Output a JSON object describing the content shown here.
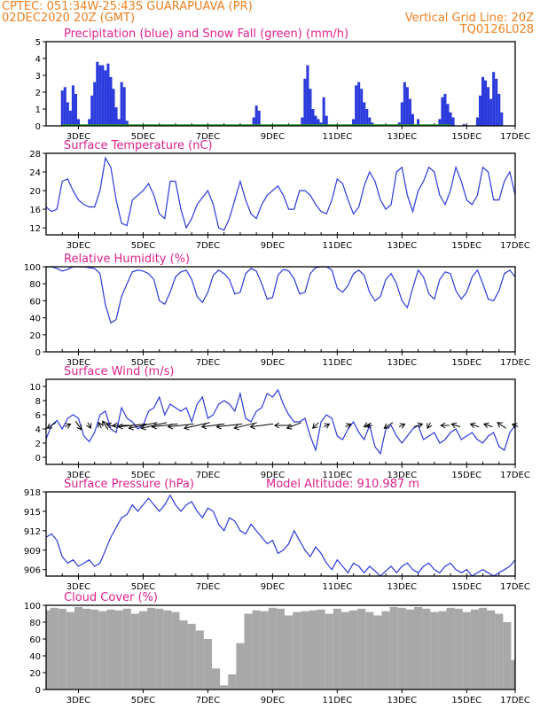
{
  "header": {
    "line1_left": "CPTEC:  051:34W-25:43S  GUARAPUAVA (PR)",
    "line2_left": "02DEC2020 20Z (GMT)",
    "line2_right": "Vertical Grid Line: 20Z",
    "line3_right": "TQ0126L028"
  },
  "colors": {
    "header": "#f08020",
    "panel_title": "#e0208c",
    "series": "#2a3adc",
    "snow": "#20a020",
    "cloud": "#a8a8a8",
    "wind_arrow": "#000000"
  },
  "chart_data": [
    {
      "id": "precip",
      "type": "bar",
      "title": "Precipitation (blue) and Snow Fall (green) (mm/h)",
      "ylim": [
        0,
        5
      ],
      "yticks": [
        0,
        1,
        2,
        3,
        4,
        5
      ],
      "xticks": [
        "3DEC",
        "5DEC",
        "7DEC",
        "9DEC",
        "11DEC",
        "13DEC",
        "15DEC",
        "17DEC"
      ],
      "xlim_hours": [
        0,
        348
      ],
      "x_hours": [
        12,
        14,
        16,
        18,
        20,
        22,
        24,
        32,
        34,
        36,
        38,
        40,
        42,
        44,
        46,
        48,
        50,
        52,
        54,
        56,
        58,
        60,
        154,
        156,
        158,
        190,
        192,
        194,
        196,
        198,
        200,
        202,
        204,
        206,
        208,
        228,
        230,
        232,
        234,
        236,
        238,
        240,
        242,
        262,
        264,
        266,
        268,
        270,
        272,
        276,
        292,
        294,
        296,
        298,
        300,
        302,
        310,
        320,
        322,
        324,
        326,
        328,
        330,
        332,
        334,
        336,
        338
      ],
      "values": [
        2.1,
        2.3,
        1.4,
        0.9,
        2.4,
        1.9,
        0.4,
        0.4,
        1.8,
        2.6,
        3.8,
        3.6,
        3.6,
        3.3,
        3.7,
        2.9,
        2.2,
        1.1,
        0.4,
        2.6,
        2.3,
        0.3,
        0.5,
        1.2,
        0.9,
        0.5,
        2.8,
        3.6,
        2.2,
        1.0,
        0.6,
        0.4,
        0.2,
        1.7,
        0.6,
        0.4,
        2.4,
        2.6,
        2.2,
        1.4,
        1.0,
        0.5,
        0.2,
        0.2,
        1.4,
        2.6,
        2.3,
        1.6,
        0.7,
        0.4,
        0.4,
        1.7,
        1.9,
        1.3,
        0.8,
        0.5,
        0.1,
        0.5,
        1.8,
        2.9,
        2.7,
        2.3,
        1.6,
        3.2,
        2.8,
        1.9,
        0.8
      ],
      "snow": "0 throughout"
    },
    {
      "id": "temp",
      "type": "line",
      "title": "Surface Temperature (nC)",
      "ylim": [
        10.5,
        28
      ],
      "yticks": [
        12,
        16,
        20,
        24,
        28
      ],
      "xticks": [
        "3DEC",
        "5DEC",
        "7DEC",
        "9DEC",
        "11DEC",
        "13DEC",
        "15DEC",
        "17DEC"
      ],
      "x_hours": [
        0,
        4,
        8,
        12,
        16,
        20,
        24,
        28,
        32,
        36,
        40,
        44,
        48,
        52,
        56,
        60,
        64,
        68,
        72,
        76,
        80,
        84,
        88,
        92,
        96,
        100,
        104,
        108,
        112,
        116,
        120,
        124,
        128,
        132,
        136,
        140,
        144,
        148,
        152,
        156,
        160,
        164,
        168,
        172,
        176,
        180,
        184,
        188,
        192,
        196,
        200,
        204,
        208,
        212,
        216,
        220,
        224,
        228,
        232,
        236,
        240,
        244,
        248,
        252,
        256,
        260,
        264,
        268,
        272,
        276,
        280,
        284,
        288,
        292,
        296,
        300,
        304,
        308,
        312,
        316,
        320,
        324,
        328,
        332,
        336,
        340,
        344,
        348
      ],
      "values": [
        16.5,
        15.5,
        16,
        22,
        22.5,
        20,
        18,
        17,
        16.5,
        16.5,
        20,
        27,
        25,
        18,
        13,
        12.5,
        18,
        19,
        20,
        21.5,
        19,
        15,
        14,
        22,
        22,
        16,
        12,
        14,
        17,
        18.5,
        20,
        17,
        12,
        11.5,
        14,
        18,
        22,
        18,
        15,
        14,
        17,
        19,
        20,
        21,
        19,
        16,
        16,
        20,
        20,
        19,
        17,
        15.5,
        15,
        18,
        22.5,
        21.5,
        18,
        15,
        16.5,
        21,
        24,
        22,
        18,
        16,
        17,
        24,
        25,
        19,
        15.5,
        20,
        22,
        25,
        24,
        19,
        17,
        20,
        25,
        22,
        18,
        17,
        19,
        25,
        24,
        18,
        18,
        22,
        24,
        19
      ]
    },
    {
      "id": "rh",
      "type": "line",
      "title": "Relative Humidity (%)",
      "ylim": [
        0,
        100
      ],
      "yticks": [
        0,
        20,
        40,
        60,
        80,
        100
      ],
      "xticks": [
        "3DEC",
        "5DEC",
        "7DEC",
        "9DEC",
        "11DEC",
        "13DEC",
        "15DEC",
        "17DEC"
      ],
      "x_hours": [
        0,
        4,
        8,
        12,
        16,
        20,
        24,
        28,
        32,
        36,
        40,
        44,
        48,
        52,
        56,
        60,
        64,
        68,
        72,
        76,
        80,
        84,
        88,
        92,
        96,
        100,
        104,
        108,
        112,
        116,
        120,
        124,
        128,
        132,
        136,
        140,
        144,
        148,
        152,
        156,
        160,
        164,
        168,
        172,
        176,
        180,
        184,
        188,
        192,
        196,
        200,
        204,
        208,
        212,
        216,
        220,
        224,
        228,
        232,
        236,
        240,
        244,
        248,
        252,
        256,
        260,
        264,
        268,
        272,
        276,
        280,
        284,
        288,
        292,
        296,
        300,
        304,
        308,
        312,
        316,
        320,
        324,
        328,
        332,
        336,
        340,
        344,
        348
      ],
      "values": [
        100,
        100,
        98,
        95,
        97,
        100,
        100,
        100,
        99,
        98,
        92,
        55,
        34,
        38,
        65,
        80,
        94,
        96,
        95,
        92,
        85,
        60,
        56,
        70,
        88,
        94,
        96,
        85,
        65,
        58,
        70,
        90,
        96,
        92,
        85,
        68,
        70,
        92,
        98,
        95,
        80,
        62,
        64,
        90,
        97,
        95,
        86,
        68,
        70,
        92,
        99,
        100,
        100,
        96,
        75,
        70,
        78,
        92,
        96,
        90,
        70,
        60,
        65,
        85,
        92,
        80,
        60,
        52,
        75,
        96,
        88,
        68,
        62,
        85,
        94,
        92,
        72,
        62,
        70,
        88,
        96,
        80,
        62,
        60,
        72,
        92,
        96,
        88
      ]
    },
    {
      "id": "wind",
      "type": "line",
      "title": "Surface Wind (m/s)",
      "ylim": [
        -1,
        11
      ],
      "yticks": [
        0,
        2,
        4,
        6,
        8,
        10
      ],
      "xticks": [
        "3DEC",
        "5DEC",
        "7DEC",
        "9DEC",
        "11DEC",
        "13DEC",
        "15DEC",
        "17DEC"
      ],
      "x_hours": [
        0,
        4,
        8,
        12,
        16,
        20,
        24,
        28,
        32,
        36,
        40,
        44,
        48,
        52,
        56,
        60,
        64,
        68,
        72,
        76,
        80,
        84,
        88,
        92,
        96,
        100,
        104,
        108,
        112,
        116,
        120,
        124,
        128,
        132,
        136,
        140,
        144,
        148,
        152,
        156,
        160,
        164,
        168,
        172,
        176,
        180,
        184,
        188,
        192,
        196,
        200,
        204,
        208,
        212,
        216,
        220,
        224,
        228,
        232,
        236,
        240,
        244,
        248,
        252,
        256,
        260,
        264,
        268,
        272,
        276,
        280,
        284,
        288,
        292,
        296,
        300,
        304,
        308,
        312,
        316,
        320,
        324,
        328,
        332,
        336,
        340,
        344,
        348
      ],
      "values": [
        2.6,
        4.5,
        5.2,
        4.0,
        5.5,
        6.0,
        5.5,
        3.0,
        2.2,
        3.5,
        6.0,
        6.5,
        4.0,
        3.5,
        7.0,
        5.5,
        5.0,
        4.0,
        4.5,
        6.5,
        7.0,
        8.5,
        6.0,
        7.5,
        7.0,
        6.5,
        7.0,
        5.0,
        7.5,
        8.5,
        5.5,
        6.0,
        7.5,
        8.0,
        7.5,
        6.5,
        9.0,
        5.5,
        5.0,
        6.5,
        7.0,
        9.0,
        8.5,
        9.5,
        7.5,
        6.0,
        5.0,
        5.0,
        5.5,
        3.0,
        1.0,
        5.0,
        6.0,
        5.5,
        3.0,
        2.5,
        4.0,
        5.0,
        3.5,
        2.5,
        4.5,
        1.5,
        0.5,
        4.0,
        4.5,
        3.0,
        2.0,
        3.0,
        4.0,
        4.5,
        2.5,
        3.0,
        3.5,
        2.0,
        2.5,
        3.5,
        4.0,
        2.5,
        3.0,
        3.5,
        2.5,
        2.0,
        3.0,
        3.5,
        1.5,
        1.0,
        3.5,
        4.5
      ],
      "arrows": {
        "x_hours": [
          4,
          16,
          24,
          32,
          40,
          44,
          48,
          56,
          64,
          72,
          80,
          88,
          100,
          112,
          124,
          136,
          148,
          160,
          176,
          184,
          200,
          208,
          224,
          238,
          240,
          254,
          264,
          276,
          284,
          296,
          304,
          318,
          328,
          338,
          348
        ],
        "u": [
          -3,
          2,
          2,
          1,
          -1,
          -2,
          -3,
          -6,
          -10,
          -10,
          -9,
          -9,
          -9,
          -9,
          -8,
          -9,
          -8,
          -8,
          -6,
          -5,
          -2,
          2,
          2,
          -2,
          -2,
          -3,
          2,
          3,
          -1,
          -3,
          -3,
          -3,
          -3,
          -3,
          -2
        ],
        "v": [
          -2,
          1,
          -3,
          -2,
          2,
          3,
          1,
          0,
          -1,
          -2,
          -2,
          -1,
          -1,
          -2,
          -1,
          -1,
          -2,
          -1,
          0,
          -2,
          -2,
          1,
          1,
          -1,
          0,
          -2,
          1,
          1,
          -2,
          0,
          1,
          1,
          1,
          2,
          1
        ]
      }
    },
    {
      "id": "pressure",
      "type": "line",
      "title": "Surface Pressure (hPa)",
      "subtitle": "Model Altitude: 910.987 m",
      "ylim": [
        905,
        918
      ],
      "yticks": [
        906,
        909,
        912,
        915,
        918
      ],
      "xticks": [
        "3DEC",
        "5DEC",
        "7DEC",
        "9DEC",
        "11DEC",
        "13DEC",
        "15DEC",
        "17DEC"
      ],
      "x_hours": [
        0,
        4,
        8,
        12,
        16,
        20,
        24,
        28,
        32,
        36,
        40,
        44,
        48,
        52,
        56,
        60,
        64,
        68,
        72,
        76,
        80,
        84,
        88,
        92,
        96,
        100,
        104,
        108,
        112,
        116,
        120,
        124,
        128,
        132,
        136,
        140,
        144,
        148,
        152,
        156,
        160,
        164,
        168,
        172,
        176,
        180,
        184,
        188,
        192,
        196,
        200,
        204,
        208,
        212,
        216,
        220,
        224,
        228,
        232,
        236,
        240,
        244,
        248,
        252,
        256,
        260,
        264,
        268,
        272,
        276,
        280,
        284,
        288,
        292,
        296,
        300,
        304,
        308,
        312,
        316,
        320,
        324,
        328,
        332,
        336,
        340,
        344,
        348
      ],
      "values": [
        911,
        911.5,
        910.5,
        908,
        907,
        907.5,
        906.5,
        907,
        907.5,
        906.5,
        907,
        909,
        911,
        912.5,
        914,
        914.5,
        916,
        915,
        916,
        917,
        916,
        915,
        916,
        917.5,
        916,
        915,
        916,
        916.5,
        915,
        914,
        915.5,
        915,
        913,
        912,
        914,
        913.5,
        912,
        911.5,
        913,
        912,
        911,
        910,
        910.5,
        908.5,
        909,
        910,
        912,
        910.5,
        909,
        908,
        909.5,
        908.5,
        907,
        906,
        907.5,
        906.5,
        905.5,
        907,
        906.5,
        905.5,
        906.5,
        905.8,
        905,
        905.8,
        906.5,
        905.5,
        906.5,
        907,
        906,
        905.5,
        906.5,
        907,
        906,
        905.5,
        906.5,
        907,
        906,
        905.5,
        906,
        905,
        905.5,
        906,
        905.5,
        905,
        905.5,
        906,
        906.5,
        907.5
      ]
    },
    {
      "id": "cloud",
      "type": "bar",
      "title": "Cloud Cover (%)",
      "ylim": [
        0,
        100
      ],
      "yticks": [
        0,
        20,
        40,
        60,
        80,
        100
      ],
      "xticks": [
        "3DEC",
        "5DEC",
        "7DEC",
        "9DEC",
        "11DEC",
        "13DEC",
        "15DEC",
        "17DEC"
      ],
      "x_hours": [
        0,
        6,
        12,
        18,
        24,
        30,
        36,
        42,
        48,
        54,
        60,
        66,
        72,
        78,
        84,
        90,
        96,
        102,
        108,
        114,
        120,
        126,
        132,
        138,
        144,
        150,
        156,
        162,
        168,
        174,
        180,
        186,
        192,
        198,
        204,
        210,
        216,
        222,
        228,
        234,
        240,
        246,
        252,
        258,
        264,
        270,
        276,
        282,
        288,
        294,
        300,
        306,
        312,
        318,
        324,
        330,
        336,
        342,
        348
      ],
      "values": [
        94,
        97,
        96,
        92,
        98,
        96,
        95,
        93,
        95,
        94,
        96,
        90,
        93,
        97,
        96,
        94,
        92,
        82,
        78,
        70,
        60,
        25,
        5,
        18,
        55,
        90,
        94,
        93,
        97,
        96,
        88,
        92,
        93,
        94,
        95,
        90,
        96,
        92,
        94,
        96,
        92,
        88,
        93,
        98,
        97,
        95,
        98,
        96,
        92,
        93,
        97,
        96,
        92,
        95,
        97,
        94,
        90,
        80,
        35
      ]
    }
  ]
}
